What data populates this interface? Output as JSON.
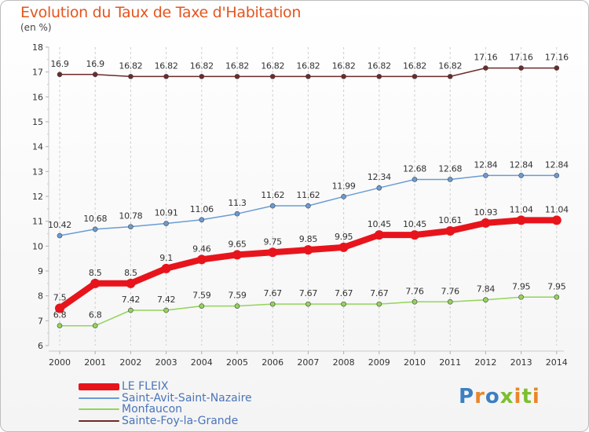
{
  "header": {
    "title": "Evolution du Taux de Taxe d'Habitation",
    "unit": "(en %)"
  },
  "logo": {
    "text": "Proxiti",
    "letter_colors": [
      "#3c7fc2",
      "#e9862b",
      "#3c7fc2",
      "#7cbf2f",
      "#e9862b",
      "#7cbf2f",
      "#e9862b"
    ]
  },
  "chart_data": {
    "type": "line",
    "x": [
      "2000",
      "2001",
      "2002",
      "2003",
      "2004",
      "2005",
      "2006",
      "2007",
      "2008",
      "2009",
      "2010",
      "2011",
      "2012",
      "2013",
      "2014"
    ],
    "ylim": [
      6,
      18
    ],
    "yticks": [
      "6",
      "7",
      "8",
      "9",
      "10",
      "11",
      "12",
      "13",
      "14",
      "15",
      "16",
      "17",
      "18"
    ],
    "grid": "vertical dashed",
    "legend_position": "bottom-left",
    "series": [
      {
        "name": "Sainte-Foy-la-Grande",
        "color": "#6e2a2a",
        "emphasis": false,
        "values": [
          16.9,
          16.9,
          16.82,
          16.82,
          16.82,
          16.82,
          16.82,
          16.82,
          16.82,
          16.82,
          16.82,
          16.82,
          17.16,
          17.16,
          17.16
        ],
        "labels": [
          "16.9",
          "16.9",
          "16.82",
          "16.82",
          "16.82",
          "16.82",
          "16.82",
          "16.82",
          "16.82",
          "16.82",
          "16.82",
          "16.82",
          "17.16",
          "17.16",
          "17.16"
        ]
      },
      {
        "name": "Saint-Avit-Saint-Nazaire",
        "color": "#6a9cd4",
        "emphasis": false,
        "values": [
          10.42,
          10.68,
          10.78,
          10.91,
          11.06,
          11.3,
          11.62,
          11.62,
          11.99,
          12.34,
          12.68,
          12.68,
          12.84,
          12.84,
          12.84
        ],
        "labels": [
          "10.42",
          "10.68",
          "10.78",
          "10.91",
          "11.06",
          "11.3",
          "11.62",
          "11.62",
          "11.99",
          "12.34",
          "12.68",
          "12.68",
          "12.84",
          "12.84",
          "12.84"
        ]
      },
      {
        "name": "Monfaucon",
        "color": "#94d45a",
        "emphasis": false,
        "values": [
          6.8,
          6.8,
          7.42,
          7.42,
          7.59,
          7.59,
          7.67,
          7.67,
          7.67,
          7.67,
          7.76,
          7.76,
          7.84,
          7.95,
          7.95
        ],
        "labels": [
          "6.8",
          "6.8",
          "7.42",
          "7.42",
          "7.59",
          "7.59",
          "7.67",
          "7.67",
          "7.67",
          "7.67",
          "7.76",
          "7.76",
          "7.84",
          "7.95",
          "7.95"
        ]
      },
      {
        "name": "LE FLEIX",
        "color": "#e8141c",
        "emphasis": true,
        "values": [
          7.5,
          8.5,
          8.5,
          9.1,
          9.46,
          9.65,
          9.75,
          9.85,
          9.95,
          10.45,
          10.45,
          10.61,
          10.93,
          11.04,
          11.04
        ],
        "labels": [
          "7.5",
          "8.5",
          "8.5",
          "9.1",
          "9.46",
          "9.65",
          "9.75",
          "9.85",
          "9.95",
          "10.45",
          "10.45",
          "10.61",
          "10.93",
          "11.04",
          "11.04"
        ]
      }
    ],
    "legend": [
      {
        "name": "LE FLEIX",
        "color": "#e8141c",
        "emphasis": true
      },
      {
        "name": "Saint-Avit-Saint-Nazaire",
        "color": "#6a9cd4",
        "emphasis": false
      },
      {
        "name": "Monfaucon",
        "color": "#94d45a",
        "emphasis": false
      },
      {
        "name": "Sainte-Foy-la-Grande",
        "color": "#6e2a2a",
        "emphasis": false
      }
    ]
  }
}
